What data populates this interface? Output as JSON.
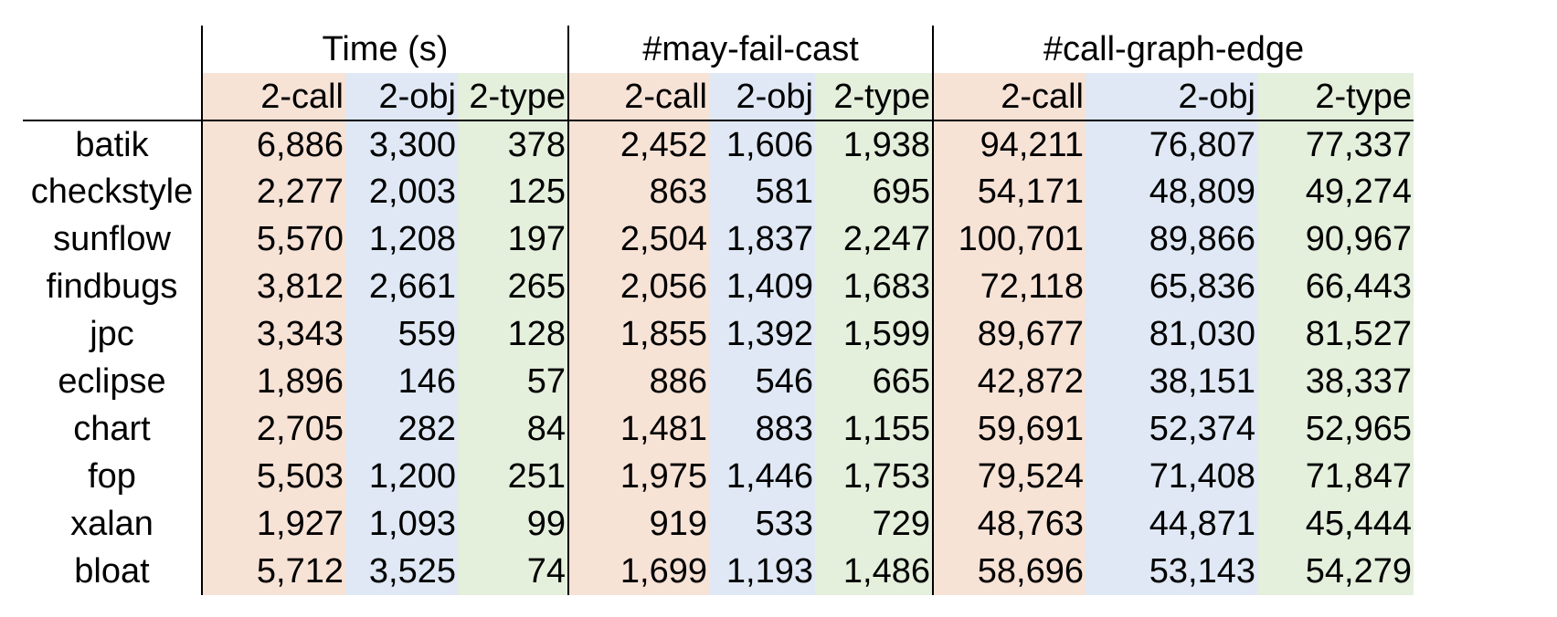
{
  "header": {
    "groups": [
      "Time (s)",
      "#may-fail-cast",
      "#call-graph-edge"
    ],
    "subcolumns": [
      "2-call",
      "2-obj",
      "2-type"
    ]
  },
  "colors": {
    "call": "#f7e2d6",
    "obj": "#dfe8f4",
    "type": "#e4efdc"
  },
  "rows": [
    {
      "name": "batik",
      "time": [
        "6,886",
        "3,300",
        "378"
      ],
      "cast": [
        "2,452",
        "1,606",
        "1,938"
      ],
      "edge": [
        "94,211",
        "76,807",
        "77,337"
      ]
    },
    {
      "name": "checkstyle",
      "time": [
        "2,277",
        "2,003",
        "125"
      ],
      "cast": [
        "863",
        "581",
        "695"
      ],
      "edge": [
        "54,171",
        "48,809",
        "49,274"
      ]
    },
    {
      "name": "sunflow",
      "time": [
        "5,570",
        "1,208",
        "197"
      ],
      "cast": [
        "2,504",
        "1,837",
        "2,247"
      ],
      "edge": [
        "100,701",
        "89,866",
        "90,967"
      ]
    },
    {
      "name": "findbugs",
      "time": [
        "3,812",
        "2,661",
        "265"
      ],
      "cast": [
        "2,056",
        "1,409",
        "1,683"
      ],
      "edge": [
        "72,118",
        "65,836",
        "66,443"
      ]
    },
    {
      "name": "jpc",
      "time": [
        "3,343",
        "559",
        "128"
      ],
      "cast": [
        "1,855",
        "1,392",
        "1,599"
      ],
      "edge": [
        "89,677",
        "81,030",
        "81,527"
      ]
    },
    {
      "name": "eclipse",
      "time": [
        "1,896",
        "146",
        "57"
      ],
      "cast": [
        "886",
        "546",
        "665"
      ],
      "edge": [
        "42,872",
        "38,151",
        "38,337"
      ]
    },
    {
      "name": "chart",
      "time": [
        "2,705",
        "282",
        "84"
      ],
      "cast": [
        "1,481",
        "883",
        "1,155"
      ],
      "edge": [
        "59,691",
        "52,374",
        "52,965"
      ]
    },
    {
      "name": "fop",
      "time": [
        "5,503",
        "1,200",
        "251"
      ],
      "cast": [
        "1,975",
        "1,446",
        "1,753"
      ],
      "edge": [
        "79,524",
        "71,408",
        "71,847"
      ]
    },
    {
      "name": "xalan",
      "time": [
        "1,927",
        "1,093",
        "99"
      ],
      "cast": [
        "919",
        "533",
        "729"
      ],
      "edge": [
        "48,763",
        "44,871",
        "45,444"
      ]
    },
    {
      "name": "bloat",
      "time": [
        "5,712",
        "3,525",
        "74"
      ],
      "cast": [
        "1,699",
        "1,193",
        "1,486"
      ],
      "edge": [
        "58,696",
        "53,143",
        "54,279"
      ]
    }
  ]
}
